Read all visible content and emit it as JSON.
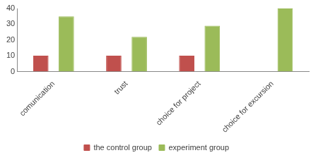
{
  "chart_data": {
    "type": "bar",
    "categories": [
      "comunication",
      "trust",
      "choice for project",
      "choice for excursion"
    ],
    "series": [
      {
        "name": "the control group",
        "color": "#c0504d",
        "values": [
          10,
          10,
          10,
          0
        ]
      },
      {
        "name": "experiment group",
        "color": "#9bbb59",
        "values": [
          35,
          22,
          29,
          40
        ]
      }
    ],
    "ylim": [
      0,
      40
    ],
    "yticks": [
      0,
      10,
      20,
      30,
      40
    ],
    "grid": false,
    "legend": "bottom"
  }
}
